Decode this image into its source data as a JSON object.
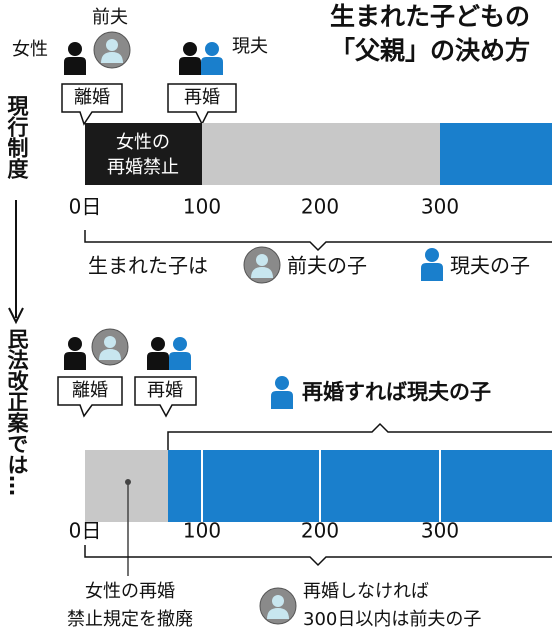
{
  "title": [
    "生まれた子どもの",
    "「父親」の決め方"
  ],
  "current": {
    "label": "現行制度",
    "people": {
      "woman": "女性",
      "ex_husband": "前夫",
      "new_husband": "現夫"
    },
    "divorce": "離婚",
    "remarriage": "再婚",
    "ban": [
      "女性の",
      "再婚禁止"
    ],
    "ticks": [
      "0日",
      100,
      200,
      300
    ],
    "born_label": "生まれた子は",
    "ex_child": "前夫の子",
    "new_child": "現夫の子"
  },
  "proposal": {
    "label": "民法改正案では…",
    "divorce": "離婚",
    "remarriage": "再婚",
    "remarried_note": "再婚すれば現夫の子",
    "ticks": [
      "0日",
      100,
      200,
      300
    ],
    "abolished": [
      "女性の再婚",
      "禁止規定を撤廃"
    ],
    "not_remarried": [
      "再婚しなければ",
      "300日以内は前夫の子"
    ]
  }
}
